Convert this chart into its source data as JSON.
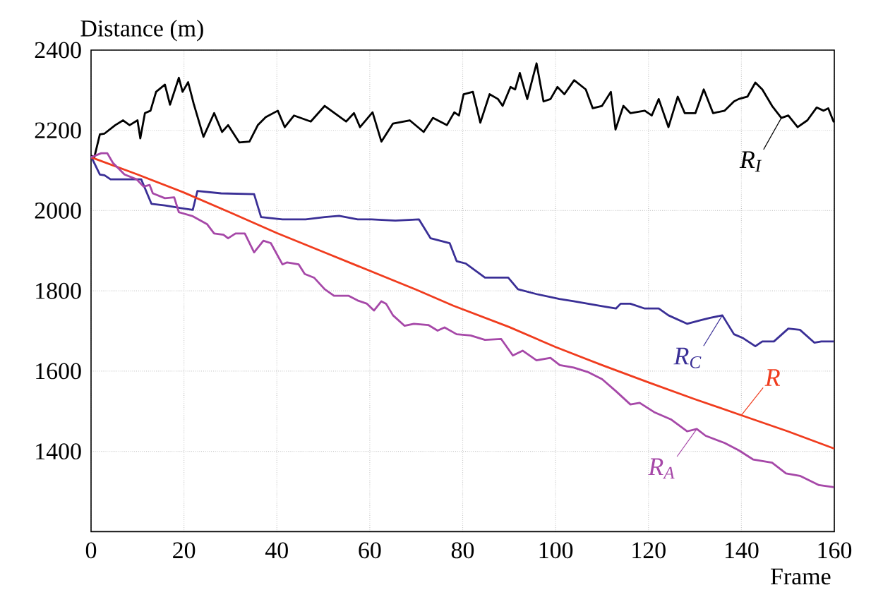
{
  "chart_data": {
    "type": "line",
    "xlabel": "Frame",
    "ylabel": "Distance (m)",
    "xlim": [
      0,
      160
    ],
    "ylim": [
      1200,
      2400
    ],
    "xticks": [
      0,
      20,
      40,
      60,
      80,
      100,
      120,
      140,
      160
    ],
    "yticks": [
      1400,
      1600,
      1800,
      2000,
      2200,
      2400
    ],
    "grid": true,
    "legend": "right",
    "marker": "none",
    "line_style": "solid",
    "series": [
      {
        "name": "R$_{I}$",
        "color": "#000000",
        "x": [
          0,
          0.7,
          1.9,
          2.9,
          5.2,
          6.9,
          8.3,
          10,
          10.6,
          11.6,
          12.8,
          14,
          15.9,
          17,
          18.9,
          19.7,
          20.9,
          22.1,
          24.2,
          26.5,
          28.2,
          29.5,
          31.9,
          34.1,
          35.9,
          37.6,
          40.2,
          41.7,
          43.7,
          47.3,
          50.3,
          54.9,
          56.6,
          57.9,
          60.6,
          62.5,
          65,
          68.6,
          71.6,
          73.6,
          76.6,
          78.2,
          79.2,
          80.2,
          82.2,
          83.8,
          85.8,
          87.6,
          88.6,
          90.3,
          91.3,
          92.3,
          93.9,
          95.9,
          97.4,
          98.9,
          100.4,
          101.9,
          104,
          106.5,
          108,
          110,
          111.9,
          112.9,
          114.6,
          116.1,
          119.2,
          120.7,
          122.2,
          124.3,
          126.3,
          127.8,
          130.1,
          131.9,
          133.9,
          136.4,
          138.4,
          139.4,
          141.3,
          143,
          144.5,
          146.6,
          148.6,
          150.1,
          152.1,
          154.2,
          156.2,
          157.7,
          158.7,
          159.9
        ],
        "values": [
          2137,
          2133,
          2190,
          2192,
          2213,
          2225,
          2213,
          2225,
          2180,
          2243,
          2249,
          2296,
          2314,
          2264,
          2331,
          2296,
          2320,
          2266,
          2184,
          2243,
          2196,
          2213,
          2170,
          2172,
          2213,
          2233,
          2249,
          2208,
          2237,
          2222,
          2261,
          2222,
          2243,
          2208,
          2245,
          2172,
          2217,
          2225,
          2196,
          2231,
          2213,
          2245,
          2237,
          2290,
          2296,
          2219,
          2290,
          2278,
          2261,
          2308,
          2302,
          2343,
          2278,
          2367,
          2272,
          2278,
          2308,
          2290,
          2325,
          2302,
          2255,
          2261,
          2296,
          2202,
          2261,
          2243,
          2249,
          2237,
          2278,
          2208,
          2284,
          2243,
          2243,
          2302,
          2243,
          2249,
          2272,
          2278,
          2284,
          2319,
          2302,
          2261,
          2231,
          2237,
          2208,
          2225,
          2257,
          2249,
          2255,
          2220
        ]
      },
      {
        "name": "R$_{C}$",
        "color": "#3a2f96",
        "x": [
          0,
          1.9,
          2.9,
          4.2,
          7.7,
          10.8,
          13,
          15.9,
          18.9,
          21.9,
          22.9,
          28,
          35.1,
          36.6,
          41.2,
          46.2,
          50.3,
          53.4,
          57.4,
          60.4,
          65.5,
          70.6,
          73.1,
          77.2,
          78.7,
          80.7,
          84.8,
          89.8,
          91.9,
          95.9,
          100.8,
          103.9,
          110,
          113,
          114,
          116.1,
          119.2,
          122.2,
          124.3,
          128.3,
          131.3,
          133.3,
          135.9,
          138.4,
          140.4,
          143,
          144.5,
          147,
          150.1,
          152.6,
          155.7,
          157.2,
          159.9
        ],
        "values": [
          2135,
          2090,
          2088,
          2078,
          2078,
          2078,
          2017,
          2013,
          2007,
          2002,
          2049,
          2043,
          2041,
          1984,
          1978,
          1978,
          1984,
          1987,
          1978,
          1978,
          1975,
          1978,
          1931,
          1919,
          1874,
          1868,
          1833,
          1833,
          1804,
          1792,
          1780,
          1774,
          1762,
          1756,
          1768,
          1768,
          1756,
          1756,
          1739,
          1718,
          1727,
          1733,
          1739,
          1692,
          1682,
          1662,
          1674,
          1674,
          1706,
          1703,
          1671,
          1674,
          1674
        ]
      },
      {
        "name": "R",
        "color": "#f03c1e",
        "x": [
          0,
          10,
          20,
          30,
          40,
          50,
          60,
          70,
          78,
          90,
          100,
          110,
          120,
          130,
          140,
          150,
          160
        ],
        "values": [
          2133,
          2090,
          2045,
          1995,
          1944,
          1897,
          1850,
          1803,
          1763,
          1710,
          1660,
          1615,
          1572,
          1530,
          1490,
          1450,
          1407
        ]
      },
      {
        "name": "R$_{A}$",
        "color": "#a648a8",
        "x": [
          0,
          2.2,
          3.5,
          4.7,
          7.2,
          9.8,
          11.3,
          12.6,
          13.3,
          15.9,
          17.9,
          18.9,
          21.9,
          25,
          26.5,
          28.5,
          29.5,
          31.1,
          33.1,
          35.1,
          37.1,
          38.7,
          41.2,
          42.2,
          44.7,
          46,
          48,
          50.3,
          52.3,
          55.4,
          57.4,
          59.4,
          60.9,
          62.5,
          63.5,
          65,
          67.5,
          69.5,
          72.6,
          74.6,
          76.1,
          78.7,
          81.7,
          84.8,
          88.3,
          90.8,
          92.9,
          95.9,
          98.9,
          100.9,
          103.9,
          106.9,
          110,
          113,
          116.1,
          118.1,
          121.2,
          124.8,
          128.3,
          130.4,
          132.3,
          136.4,
          139.4,
          142.5,
          146.6,
          149.6,
          152.6,
          156.7,
          159.9
        ],
        "values": [
          2133,
          2143,
          2143,
          2119,
          2090,
          2078,
          2060,
          2064,
          2043,
          2031,
          2033,
          1996,
          1986,
          1966,
          1943,
          1940,
          1931,
          1943,
          1943,
          1896,
          1925,
          1919,
          1866,
          1871,
          1866,
          1842,
          1833,
          1804,
          1788,
          1788,
          1776,
          1768,
          1751,
          1774,
          1768,
          1739,
          1713,
          1718,
          1715,
          1701,
          1709,
          1692,
          1689,
          1678,
          1680,
          1639,
          1651,
          1627,
          1633,
          1615,
          1609,
          1598,
          1580,
          1550,
          1517,
          1521,
          1498,
          1480,
          1450,
          1456,
          1439,
          1421,
          1403,
          1380,
          1372,
          1345,
          1339,
          1316,
          1311
        ]
      }
    ]
  }
}
